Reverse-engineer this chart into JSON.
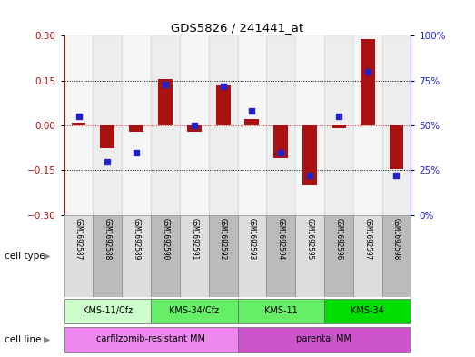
{
  "title": "GDS5826 / 241441_at",
  "samples": [
    "GSM1692587",
    "GSM1692588",
    "GSM1692589",
    "GSM1692590",
    "GSM1692591",
    "GSM1692592",
    "GSM1692593",
    "GSM1692594",
    "GSM1692595",
    "GSM1692596",
    "GSM1692597",
    "GSM1692598"
  ],
  "transformed_count": [
    0.01,
    -0.075,
    -0.02,
    0.155,
    -0.02,
    0.135,
    0.02,
    -0.11,
    -0.2,
    -0.01,
    0.29,
    -0.145
  ],
  "percentile_rank": [
    55,
    30,
    35,
    73,
    50,
    72,
    58,
    35,
    22,
    55,
    80,
    22
  ],
  "ylim_left": [
    -0.3,
    0.3
  ],
  "ylim_right": [
    0,
    100
  ],
  "yticks_left": [
    -0.3,
    -0.15,
    0,
    0.15,
    0.3
  ],
  "yticks_right": [
    0,
    25,
    50,
    75,
    100
  ],
  "ytick_labels_right": [
    "0%",
    "25%",
    "50%",
    "75%",
    "100%"
  ],
  "bar_color": "#AA1111",
  "dot_color": "#2222CC",
  "cell_line_groups": [
    {
      "label": "KMS-11/Cfz",
      "start": 0,
      "end": 3,
      "color": "#ccffcc"
    },
    {
      "label": "KMS-34/Cfz",
      "start": 3,
      "end": 6,
      "color": "#66ee66"
    },
    {
      "label": "KMS-11",
      "start": 6,
      "end": 9,
      "color": "#66ee66"
    },
    {
      "label": "KMS-34",
      "start": 9,
      "end": 12,
      "color": "#00dd00"
    }
  ],
  "cell_type_groups": [
    {
      "label": "carfilzomib-resistant MM",
      "start": 0,
      "end": 6,
      "color": "#ee88ee"
    },
    {
      "label": "parental MM",
      "start": 6,
      "end": 12,
      "color": "#cc55cc"
    }
  ],
  "bg_color": "#ffffff",
  "sample_bg_light": "#dddddd",
  "sample_bg_dark": "#bbbbbb",
  "zero_line_color": "#dd2222",
  "hline_color": "#000000",
  "left_color": "#AA1111",
  "right_color": "#2222CC"
}
